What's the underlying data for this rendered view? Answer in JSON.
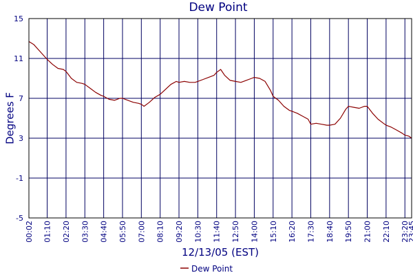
{
  "chart_data": {
    "type": "line",
    "title": "Dew Point",
    "xlabel": "12/13/05 (EST)",
    "ylabel": "Degrees F",
    "ylim": [
      -5,
      15
    ],
    "y_ticks": [
      15,
      11,
      7,
      3,
      -1,
      -5
    ],
    "x_ticks": [
      "00:02",
      "01:10",
      "02:20",
      "03:30",
      "04:40",
      "05:50",
      "07:00",
      "08:10",
      "09:20",
      "10:30",
      "11:40",
      "12:50",
      "14:00",
      "15:10",
      "16:20",
      "17:30",
      "18:40",
      "19:50",
      "21:00",
      "22:10",
      "23:20",
      "23:45"
    ],
    "grid": true,
    "legend": "bottom-center",
    "colors": {
      "series": "#8b0000",
      "grid": "#000060",
      "text": "#000080"
    },
    "series": [
      {
        "name": "Dew Point",
        "points": [
          [
            "00:02",
            12.7
          ],
          [
            "00:20",
            12.4
          ],
          [
            "00:40",
            11.8
          ],
          [
            "01:00",
            11.2
          ],
          [
            "01:10",
            10.9
          ],
          [
            "01:30",
            10.4
          ],
          [
            "01:50",
            10.0
          ],
          [
            "02:10",
            9.9
          ],
          [
            "02:20",
            9.7
          ],
          [
            "02:40",
            9.0
          ],
          [
            "03:00",
            8.6
          ],
          [
            "03:20",
            8.5
          ],
          [
            "03:30",
            8.4
          ],
          [
            "03:50",
            8.0
          ],
          [
            "04:10",
            7.6
          ],
          [
            "04:30",
            7.3
          ],
          [
            "04:40",
            7.2
          ],
          [
            "05:00",
            6.9
          ],
          [
            "05:20",
            6.8
          ],
          [
            "05:40",
            7.0
          ],
          [
            "05:50",
            7.0
          ],
          [
            "06:10",
            6.8
          ],
          [
            "06:30",
            6.6
          ],
          [
            "06:50",
            6.5
          ],
          [
            "07:00",
            6.4
          ],
          [
            "07:10",
            6.2
          ],
          [
            "07:30",
            6.6
          ],
          [
            "07:50",
            7.1
          ],
          [
            "08:10",
            7.4
          ],
          [
            "08:30",
            7.9
          ],
          [
            "08:50",
            8.4
          ],
          [
            "09:10",
            8.7
          ],
          [
            "09:20",
            8.6
          ],
          [
            "09:40",
            8.7
          ],
          [
            "10:00",
            8.6
          ],
          [
            "10:20",
            8.6
          ],
          [
            "10:30",
            8.7
          ],
          [
            "10:50",
            8.9
          ],
          [
            "11:10",
            9.1
          ],
          [
            "11:30",
            9.3
          ],
          [
            "11:40",
            9.6
          ],
          [
            "11:55",
            9.9
          ],
          [
            "12:10",
            9.3
          ],
          [
            "12:30",
            8.8
          ],
          [
            "12:50",
            8.7
          ],
          [
            "13:10",
            8.6
          ],
          [
            "13:30",
            8.8
          ],
          [
            "13:50",
            9.0
          ],
          [
            "14:00",
            9.1
          ],
          [
            "14:20",
            9.0
          ],
          [
            "14:40",
            8.7
          ],
          [
            "15:00",
            7.8
          ],
          [
            "15:10",
            7.2
          ],
          [
            "15:30",
            6.8
          ],
          [
            "15:50",
            6.2
          ],
          [
            "16:10",
            5.8
          ],
          [
            "16:20",
            5.7
          ],
          [
            "16:40",
            5.5
          ],
          [
            "17:00",
            5.2
          ],
          [
            "17:20",
            4.9
          ],
          [
            "17:30",
            4.4
          ],
          [
            "17:50",
            4.5
          ],
          [
            "18:10",
            4.4
          ],
          [
            "18:30",
            4.3
          ],
          [
            "18:40",
            4.3
          ],
          [
            "19:00",
            4.4
          ],
          [
            "19:20",
            5.0
          ],
          [
            "19:40",
            5.9
          ],
          [
            "19:50",
            6.2
          ],
          [
            "20:10",
            6.1
          ],
          [
            "20:30",
            6.0
          ],
          [
            "20:50",
            6.2
          ],
          [
            "21:00",
            6.2
          ],
          [
            "21:20",
            5.5
          ],
          [
            "21:40",
            4.9
          ],
          [
            "22:00",
            4.5
          ],
          [
            "22:10",
            4.3
          ],
          [
            "22:30",
            4.1
          ],
          [
            "22:50",
            3.8
          ],
          [
            "23:10",
            3.5
          ],
          [
            "23:20",
            3.3
          ],
          [
            "23:35",
            3.2
          ],
          [
            "23:45",
            3.0
          ]
        ]
      }
    ]
  }
}
